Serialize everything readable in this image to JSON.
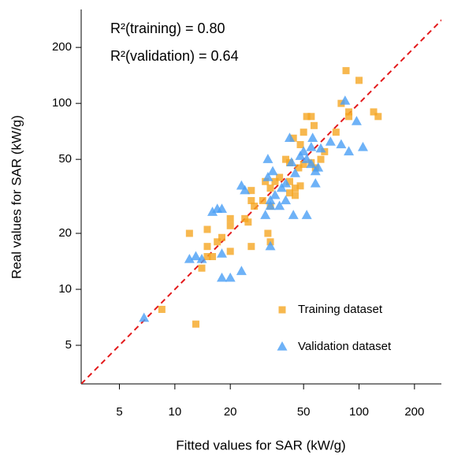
{
  "chart_data": {
    "type": "scatter",
    "xlabel": "Fitted values for SAR (kW/g)",
    "ylabel": "Real values for SAR (kW/g)",
    "log_x": true,
    "log_y": true,
    "xlim": [
      3.1,
      280
    ],
    "ylim": [
      3.1,
      320
    ],
    "xticks": [
      5,
      10,
      20,
      50,
      100,
      200
    ],
    "yticks": [
      5,
      10,
      20,
      50,
      100,
      200
    ],
    "legend_position": "lower right",
    "identity_line": {
      "color": "#e31a1c",
      "style": "dashed"
    },
    "annotations": [
      {
        "text": "R²(training) = 0.80",
        "color": "#f5a623"
      },
      {
        "text": "R²(validation) = 0.64",
        "color": "#4a9ff5"
      }
    ],
    "series": [
      {
        "name": "Training dataset",
        "color": "#f5a623",
        "marker": "square",
        "x": [
          85,
          100,
          120,
          127,
          80,
          88,
          88,
          75,
          55,
          52,
          57,
          50,
          48,
          44,
          65,
          62,
          58,
          55,
          50,
          47,
          42,
          40,
          37,
          35,
          42,
          45,
          48,
          45,
          42,
          31,
          33,
          30,
          33,
          26,
          26,
          27,
          25,
          32,
          33,
          26,
          24,
          20,
          20,
          18,
          17,
          20,
          15,
          15,
          15,
          16,
          12,
          14,
          8.5,
          13
        ],
        "values": [
          150,
          133,
          90,
          85,
          100,
          90,
          85,
          70,
          85,
          85,
          76,
          70,
          60,
          65,
          55,
          50,
          45,
          48,
          47,
          45,
          48,
          50,
          40,
          38,
          38,
          35,
          36,
          32,
          33,
          38,
          35,
          30,
          28,
          34,
          30,
          28,
          23,
          20,
          18,
          17,
          24,
          22,
          24,
          19,
          18,
          16,
          21,
          17,
          15,
          15,
          20,
          13,
          7.8,
          6.5
        ]
      },
      {
        "name": "Validation dataset",
        "color": "#4a9ff5",
        "marker": "triangle",
        "x": [
          84,
          97,
          88,
          80,
          105,
          70,
          62,
          56,
          55,
          50,
          52,
          48,
          45,
          43,
          42,
          55,
          58,
          60,
          40,
          38,
          35,
          37,
          44,
          52,
          32,
          34,
          32,
          33,
          33,
          31,
          23,
          24,
          17,
          18,
          16,
          14,
          13,
          12,
          18,
          18,
          20,
          23,
          33,
          6.8,
          58,
          40
        ],
        "values": [
          103,
          80,
          55,
          60,
          58,
          62,
          57,
          65,
          58,
          55,
          50,
          52,
          42,
          48,
          65,
          47,
          43,
          45,
          30,
          35,
          32,
          28,
          25,
          25,
          50,
          43,
          40,
          30,
          28,
          25,
          36,
          34,
          27,
          27,
          26,
          14.5,
          15,
          14.5,
          15.5,
          11.5,
          11.5,
          12.5,
          17,
          7,
          37,
          37
        ]
      }
    ]
  }
}
